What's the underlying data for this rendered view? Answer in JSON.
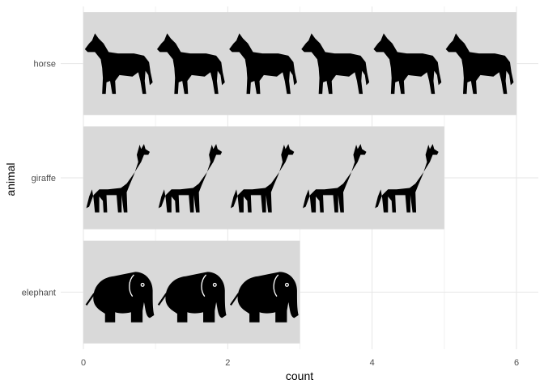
{
  "chart_data": {
    "type": "bar",
    "orientation": "horizontal",
    "title": "",
    "xlabel": "count",
    "ylabel": "animal",
    "categories": [
      "elephant",
      "giraffe",
      "horse"
    ],
    "values": [
      3,
      5,
      6
    ],
    "icon_per_unit": [
      "elephant-icon",
      "giraffe-icon",
      "horse-icon"
    ],
    "xlim": [
      0,
      6.3
    ],
    "x_ticks": [
      0,
      2,
      4,
      6
    ],
    "x_tick_labels": [
      "0",
      "2",
      "4",
      "6"
    ],
    "grid": true,
    "legend": "none",
    "colors": {
      "bar_fill": "#d9d9d9",
      "icon": "#000000",
      "grid_major": "#e6e6e6",
      "grid_minor": "#f2f2f2",
      "tick_text": "#4d4d4d"
    }
  }
}
